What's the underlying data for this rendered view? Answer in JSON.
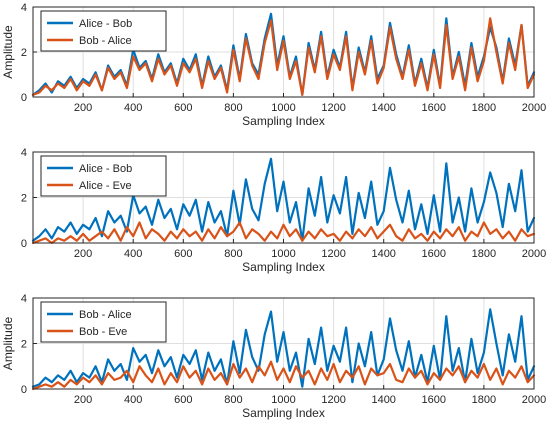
{
  "figure": {
    "background": "#ffffff",
    "axis_color": "#262626",
    "grid_color": "#dfdfdf",
    "series_colors": {
      "blue": "#0072BD",
      "orange": "#D95319"
    }
  },
  "chart_data": [
    {
      "type": "line",
      "xlabel": "Sampling Index",
      "ylabel": "Amplitude",
      "xlim": [
        0,
        2000
      ],
      "ylim": [
        0,
        4
      ],
      "xticks": [
        200,
        400,
        600,
        800,
        1000,
        1200,
        1400,
        1600,
        1800,
        2000
      ],
      "xtick_labels": [
        "200",
        "400",
        "600",
        "800",
        "1000",
        "1200",
        "1400",
        "1600",
        "1800",
        "2000"
      ],
      "yticks": [
        0,
        2,
        4
      ],
      "ytick_labels": [
        "0",
        "2",
        "4"
      ],
      "grid": true,
      "legend_position": "top-left",
      "x": [
        0,
        25,
        50,
        75,
        100,
        125,
        150,
        175,
        200,
        225,
        250,
        275,
        300,
        325,
        350,
        375,
        400,
        425,
        450,
        475,
        500,
        525,
        550,
        575,
        600,
        625,
        650,
        675,
        700,
        725,
        750,
        775,
        800,
        825,
        850,
        875,
        900,
        925,
        950,
        975,
        1000,
        1025,
        1050,
        1075,
        1100,
        1125,
        1150,
        1175,
        1200,
        1225,
        1250,
        1275,
        1300,
        1325,
        1350,
        1375,
        1400,
        1425,
        1450,
        1475,
        1500,
        1525,
        1550,
        1575,
        1600,
        1625,
        1650,
        1675,
        1700,
        1725,
        1750,
        1775,
        1800,
        1825,
        1850,
        1875,
        1900,
        1925,
        1950,
        1975,
        2000
      ],
      "series": [
        {
          "name": "Alice - Bob",
          "color": "#0072BD",
          "values": [
            0.1,
            0.3,
            0.6,
            0.2,
            0.7,
            0.5,
            0.9,
            0.4,
            0.8,
            0.6,
            1.1,
            0.3,
            1.4,
            0.9,
            1.2,
            0.5,
            2.1,
            1.3,
            1.6,
            0.8,
            1.9,
            1.1,
            1.5,
            0.6,
            1.7,
            1.2,
            1.9,
            0.5,
            1.8,
            0.9,
            1.4,
            0.3,
            2.3,
            0.8,
            2.8,
            1.5,
            1.0,
            2.6,
            3.7,
            1.4,
            2.7,
            0.9,
            1.8,
            0.1,
            2.4,
            1.2,
            2.9,
            0.9,
            2.1,
            1.3,
            2.9,
            0.4,
            2.2,
            1.1,
            2.7,
            0.8,
            1.4,
            3.3,
            1.9,
            0.9,
            2.3,
            0.6,
            1.7,
            0.4,
            2.1,
            0.5,
            3.5,
            0.9,
            2.0,
            0.5,
            2.4,
            0.9,
            1.8,
            3.1,
            2.2,
            0.7,
            2.6,
            1.4,
            3.2,
            0.5,
            1.1
          ]
        },
        {
          "name": "Bob - Alice",
          "color": "#D95319",
          "values": [
            0.1,
            0.2,
            0.5,
            0.3,
            0.6,
            0.4,
            0.8,
            0.3,
            0.7,
            0.5,
            1.0,
            0.3,
            1.3,
            0.8,
            1.1,
            0.4,
            1.8,
            1.2,
            1.5,
            0.7,
            1.7,
            1.0,
            1.4,
            0.5,
            1.5,
            1.1,
            1.7,
            0.4,
            1.6,
            0.8,
            1.3,
            0.2,
            2.1,
            0.7,
            2.6,
            1.4,
            0.8,
            2.4,
            3.4,
            1.2,
            2.5,
            0.8,
            1.6,
            0.1,
            2.2,
            1.1,
            2.7,
            0.8,
            1.9,
            1.2,
            2.7,
            0.3,
            2.0,
            1.0,
            2.5,
            0.6,
            1.3,
            3.1,
            1.7,
            0.8,
            2.1,
            0.5,
            1.5,
            0.3,
            1.9,
            0.4,
            3.2,
            0.8,
            1.8,
            0.3,
            2.2,
            0.7,
            1.6,
            3.5,
            2.0,
            0.6,
            2.4,
            1.2,
            3.2,
            0.4,
            1.0
          ]
        }
      ]
    },
    {
      "type": "line",
      "xlabel": "Sampling Index",
      "ylabel": "",
      "xlim": [
        0,
        2000
      ],
      "ylim": [
        0,
        4
      ],
      "xticks": [
        200,
        400,
        600,
        800,
        1000,
        1200,
        1400,
        1600,
        1800,
        2000
      ],
      "xtick_labels": [
        "200",
        "400",
        "600",
        "800",
        "1000",
        "1200",
        "1400",
        "1600",
        "1800",
        "2000"
      ],
      "yticks": [
        0,
        2,
        4
      ],
      "ytick_labels": [
        "0",
        "2",
        "4"
      ],
      "grid": true,
      "legend_position": "top-left",
      "x": [
        0,
        25,
        50,
        75,
        100,
        125,
        150,
        175,
        200,
        225,
        250,
        275,
        300,
        325,
        350,
        375,
        400,
        425,
        450,
        475,
        500,
        525,
        550,
        575,
        600,
        625,
        650,
        675,
        700,
        725,
        750,
        775,
        800,
        825,
        850,
        875,
        900,
        925,
        950,
        975,
        1000,
        1025,
        1050,
        1075,
        1100,
        1125,
        1150,
        1175,
        1200,
        1225,
        1250,
        1275,
        1300,
        1325,
        1350,
        1375,
        1400,
        1425,
        1450,
        1475,
        1500,
        1525,
        1550,
        1575,
        1600,
        1625,
        1650,
        1675,
        1700,
        1725,
        1750,
        1775,
        1800,
        1825,
        1850,
        1875,
        1900,
        1925,
        1950,
        1975,
        2000
      ],
      "series": [
        {
          "name": "Alice - Bob",
          "color": "#0072BD",
          "values": [
            0.1,
            0.3,
            0.6,
            0.2,
            0.7,
            0.5,
            0.9,
            0.4,
            0.8,
            0.6,
            1.1,
            0.3,
            1.4,
            0.9,
            1.2,
            0.5,
            2.1,
            1.3,
            1.6,
            0.8,
            1.9,
            1.1,
            1.5,
            0.6,
            1.7,
            1.2,
            1.9,
            0.5,
            1.8,
            0.9,
            1.4,
            0.3,
            2.3,
            0.8,
            2.8,
            1.5,
            1.0,
            2.6,
            3.7,
            1.4,
            2.7,
            0.9,
            1.8,
            0.1,
            2.4,
            1.2,
            2.9,
            0.9,
            2.1,
            1.3,
            2.9,
            0.4,
            2.2,
            1.1,
            2.7,
            0.8,
            1.4,
            3.3,
            1.9,
            0.9,
            2.3,
            0.6,
            1.7,
            0.4,
            2.1,
            0.5,
            3.5,
            0.9,
            2.0,
            0.5,
            2.4,
            0.9,
            1.8,
            3.1,
            2.2,
            0.7,
            2.6,
            1.4,
            3.2,
            0.5,
            1.1
          ]
        },
        {
          "name": "Alice - Eve",
          "color": "#D95319",
          "values": [
            0.0,
            0.1,
            0.2,
            0.0,
            0.2,
            0.1,
            0.3,
            0.1,
            0.4,
            0.1,
            0.3,
            0.5,
            0.2,
            0.6,
            0.1,
            0.7,
            0.3,
            0.9,
            0.2,
            0.6,
            0.4,
            0.1,
            0.5,
            0.2,
            0.6,
            0.3,
            0.5,
            0.1,
            0.6,
            0.2,
            0.7,
            0.3,
            0.5,
            0.9,
            0.2,
            0.6,
            0.4,
            0.1,
            0.5,
            0.2,
            0.8,
            0.3,
            0.6,
            0.1,
            0.5,
            0.2,
            0.6,
            0.3,
            0.4,
            0.1,
            0.5,
            0.2,
            0.6,
            0.3,
            0.7,
            0.2,
            0.5,
            0.8,
            0.3,
            0.1,
            0.6,
            0.2,
            0.4,
            0.1,
            0.5,
            0.2,
            0.6,
            0.3,
            0.7,
            0.1,
            0.5,
            0.3,
            0.9,
            0.4,
            0.6,
            0.2,
            0.5,
            0.1,
            0.6,
            0.3,
            0.4
          ]
        }
      ]
    },
    {
      "type": "line",
      "xlabel": "Sampling Index",
      "ylabel": "Amplitude",
      "xlim": [
        0,
        2000
      ],
      "ylim": [
        0,
        4
      ],
      "xticks": [
        200,
        400,
        600,
        800,
        1000,
        1200,
        1400,
        1600,
        1800,
        2000
      ],
      "xtick_labels": [
        "200",
        "400",
        "600",
        "800",
        "1000",
        "1200",
        "1400",
        "1600",
        "1800",
        "2000"
      ],
      "yticks": [
        0,
        2,
        4
      ],
      "ytick_labels": [
        "0",
        "2",
        "4"
      ],
      "grid": true,
      "legend_position": "top-left",
      "x": [
        0,
        25,
        50,
        75,
        100,
        125,
        150,
        175,
        200,
        225,
        250,
        275,
        300,
        325,
        350,
        375,
        400,
        425,
        450,
        475,
        500,
        525,
        550,
        575,
        600,
        625,
        650,
        675,
        700,
        725,
        750,
        775,
        800,
        825,
        850,
        875,
        900,
        925,
        950,
        975,
        1000,
        1025,
        1050,
        1075,
        1100,
        1125,
        1150,
        1175,
        1200,
        1225,
        1250,
        1275,
        1300,
        1325,
        1350,
        1375,
        1400,
        1425,
        1450,
        1475,
        1500,
        1525,
        1550,
        1575,
        1600,
        1625,
        1650,
        1675,
        1700,
        1725,
        1750,
        1775,
        1800,
        1825,
        1850,
        1875,
        1900,
        1925,
        1950,
        1975,
        2000
      ],
      "series": [
        {
          "name": "Bob - Alice",
          "color": "#0072BD",
          "values": [
            0.1,
            0.2,
            0.5,
            0.3,
            0.6,
            0.4,
            0.8,
            0.3,
            0.7,
            0.5,
            1.0,
            0.3,
            1.3,
            0.8,
            1.1,
            0.4,
            1.8,
            1.2,
            1.5,
            0.7,
            1.7,
            1.0,
            1.4,
            0.5,
            1.5,
            1.1,
            1.7,
            0.4,
            1.6,
            0.8,
            1.3,
            0.2,
            2.1,
            0.7,
            2.6,
            1.4,
            0.8,
            2.4,
            3.4,
            1.2,
            2.5,
            0.8,
            1.6,
            0.1,
            2.2,
            1.1,
            2.7,
            0.8,
            1.9,
            1.2,
            2.7,
            0.3,
            2.0,
            1.0,
            2.5,
            0.6,
            1.3,
            3.1,
            1.7,
            0.8,
            2.1,
            0.5,
            1.5,
            0.3,
            1.9,
            0.4,
            3.2,
            0.8,
            1.8,
            0.3,
            2.2,
            0.7,
            1.6,
            3.5,
            2.0,
            0.6,
            2.4,
            1.2,
            3.2,
            0.4,
            1.0
          ]
        },
        {
          "name": "Bob - Eve",
          "color": "#D95319",
          "values": [
            0.0,
            0.1,
            0.2,
            0.1,
            0.3,
            0.1,
            0.4,
            0.2,
            0.5,
            0.3,
            0.6,
            0.2,
            0.7,
            0.4,
            0.5,
            0.8,
            0.3,
            1.0,
            0.6,
            0.3,
            0.9,
            0.2,
            0.7,
            0.3,
            1.0,
            0.5,
            0.8,
            0.2,
            0.9,
            0.4,
            0.7,
            0.2,
            1.1,
            0.5,
            0.9,
            0.3,
            1.0,
            0.6,
            1.2,
            0.4,
            0.9,
            0.3,
            1.0,
            0.5,
            0.8,
            0.2,
            0.9,
            0.4,
            1.1,
            0.3,
            0.8,
            0.5,
            1.0,
            0.2,
            0.9,
            0.6,
            0.7,
            1.1,
            0.4,
            0.3,
            0.9,
            0.5,
            0.8,
            0.2,
            0.7,
            0.4,
            0.9,
            0.6,
            1.0,
            0.3,
            0.8,
            0.5,
            1.1,
            0.4,
            0.9,
            0.2,
            0.8,
            0.5,
            1.0,
            0.3,
            0.6
          ]
        }
      ]
    }
  ]
}
